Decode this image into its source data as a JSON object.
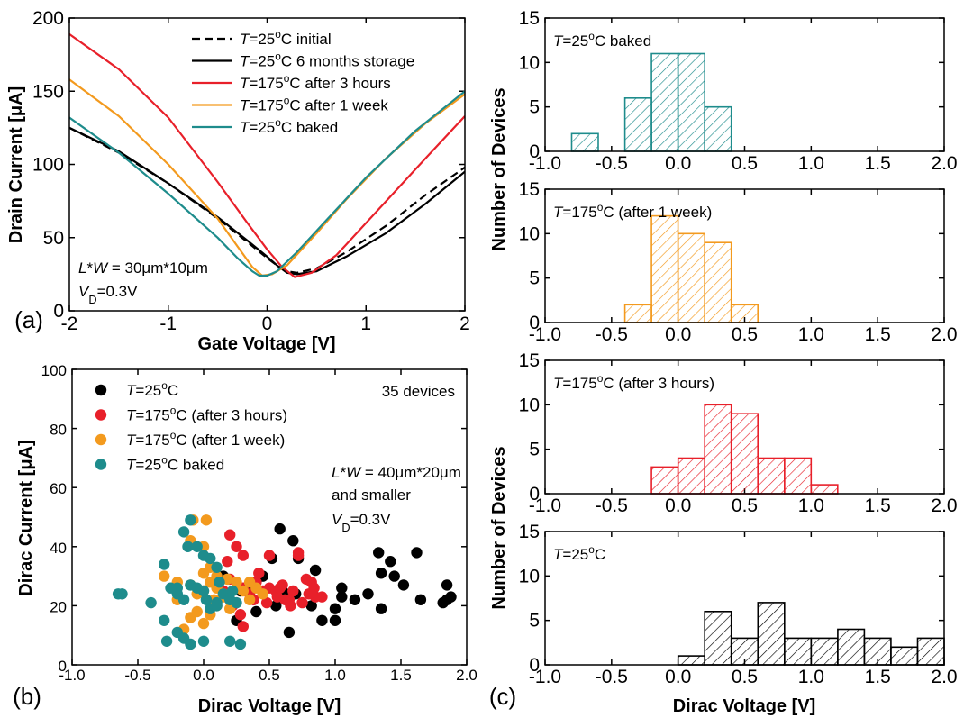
{
  "panel_labels": {
    "a": "(a)",
    "b": "(b)",
    "c": "(c)"
  },
  "chart_data": [
    {
      "id": "a",
      "type": "line",
      "xlabel": "Gate Voltage [V]",
      "ylabel": "Drain Current [μA]",
      "xlim": [
        -2,
        2
      ],
      "ylim": [
        0,
        200
      ],
      "xticks": [
        -2,
        -1,
        0,
        1,
        2
      ],
      "yticks": [
        0,
        50,
        100,
        150,
        200
      ],
      "annotation": [
        "L*W = 30μm*10μm",
        "VD=0.3V"
      ],
      "series": [
        {
          "name": "T=25°C initial",
          "color": "#000000",
          "dash": true,
          "x": [
            -2,
            -1.5,
            -1,
            -0.5,
            -0.2,
            0,
            0.1,
            0.2,
            0.3,
            0.5,
            0.8,
            1.2,
            1.6,
            2.0
          ],
          "y": [
            125,
            108,
            87,
            63,
            47,
            36,
            31,
            27,
            26,
            29,
            40,
            58,
            79,
            98
          ]
        },
        {
          "name": "T=25°C 6 months storage",
          "color": "#000000",
          "dash": false,
          "x": [
            -2,
            -1.5,
            -1,
            -0.5,
            -0.2,
            0,
            0.1,
            0.2,
            0.3,
            0.5,
            0.8,
            1.2,
            1.6,
            2.0
          ],
          "y": [
            125,
            109,
            87,
            64,
            48,
            37,
            31,
            26,
            25,
            27,
            37,
            53,
            73,
            95
          ]
        },
        {
          "name": "T=175°C after 3 hours",
          "color": "#e8202a",
          "dash": false,
          "x": [
            -2,
            -1.5,
            -1,
            -0.5,
            -0.2,
            0,
            0.15,
            0.28,
            0.45,
            0.7,
            1.0,
            1.3,
            1.6,
            2.0
          ],
          "y": [
            189,
            165,
            132,
            88,
            60,
            42,
            30,
            23,
            26,
            38,
            60,
            82,
            104,
            133
          ]
        },
        {
          "name": "T=175°C after 1 week",
          "color": "#f39a1e",
          "dash": false,
          "x": [
            -2,
            -1.5,
            -1,
            -0.5,
            -0.3,
            -0.15,
            -0.05,
            0.05,
            0.2,
            0.5,
            0.8,
            1.2,
            1.6,
            2.0
          ],
          "y": [
            158,
            133,
            100,
            63,
            44,
            30,
            24,
            25,
            31,
            53,
            76,
            104,
            128,
            148
          ]
        },
        {
          "name": "T=25°C baked",
          "color": "#1e8c8c",
          "dash": false,
          "x": [
            -2,
            -1.5,
            -1,
            -0.5,
            -0.3,
            -0.15,
            -0.08,
            0,
            0.1,
            0.3,
            0.6,
            1.0,
            1.5,
            2.0
          ],
          "y": [
            132,
            108,
            80,
            50,
            36,
            27,
            24,
            24,
            27,
            40,
            62,
            91,
            123,
            150
          ]
        }
      ]
    },
    {
      "id": "b",
      "type": "scatter",
      "xlabel": "Dirac Voltage [V]",
      "ylabel": "Dirac Current [μA]",
      "xlim": [
        -1.0,
        2.0
      ],
      "ylim": [
        0,
        100
      ],
      "xticks": [
        -1.0,
        -0.5,
        0.0,
        0.5,
        1.0,
        1.5,
        2.0
      ],
      "yticks": [
        0,
        20,
        40,
        60,
        80,
        100
      ],
      "annotation_count": "35 devices",
      "annotation": [
        "L*W = 40μm*20μm",
        "and smaller",
        "VD=0.3V"
      ],
      "series": [
        {
          "name": "T=25°C",
          "color": "#000000",
          "points": [
            [
              0.58,
              46
            ],
            [
              0.68,
              42
            ],
            [
              0.52,
              36
            ],
            [
              0.72,
              36
            ],
            [
              0.85,
              32
            ],
            [
              1.05,
              23
            ],
            [
              1.05,
              26
            ],
            [
              1.15,
              22
            ],
            [
              1.25,
              24
            ],
            [
              1.33,
              38
            ],
            [
              1.35,
              31
            ],
            [
              1.42,
              35
            ],
            [
              1.45,
              30
            ],
            [
              1.52,
              27
            ],
            [
              1.62,
              38
            ],
            [
              1.65,
              22
            ],
            [
              1.82,
              21
            ],
            [
              1.85,
              22
            ],
            [
              1.85,
              27
            ],
            [
              1.88,
              23
            ],
            [
              1.35,
              19
            ],
            [
              1.0,
              15
            ],
            [
              1.0,
              19
            ],
            [
              0.82,
              20
            ],
            [
              0.65,
              11
            ],
            [
              0.9,
              15
            ],
            [
              0.6,
              25
            ],
            [
              0.45,
              30
            ],
            [
              0.35,
              26
            ],
            [
              0.28,
              25
            ],
            [
              0.2,
              22
            ],
            [
              0.15,
              30
            ],
            [
              0.1,
              29
            ],
            [
              0.25,
              15
            ],
            [
              0.4,
              18
            ],
            [
              0.55,
              20
            ],
            [
              0.62,
              24
            ],
            [
              0.7,
              24
            ]
          ]
        },
        {
          "name": "T=175°C (after 3 hours)",
          "color": "#e8202a",
          "points": [
            [
              0.2,
              44
            ],
            [
              0.25,
              40
            ],
            [
              0.18,
              35
            ],
            [
              0.3,
              37
            ],
            [
              0.42,
              31
            ],
            [
              0.5,
              37
            ],
            [
              0.72,
              37
            ],
            [
              0.78,
              29
            ],
            [
              0.85,
              23
            ],
            [
              0.9,
              23
            ],
            [
              0.82,
              28
            ],
            [
              0.72,
              38
            ],
            [
              0.6,
              27
            ],
            [
              0.55,
              25
            ],
            [
              0.45,
              25
            ],
            [
              0.3,
              26
            ],
            [
              0.28,
              17
            ],
            [
              0.35,
              24
            ],
            [
              0.4,
              28
            ],
            [
              0.5,
              26
            ],
            [
              0.62,
              22
            ],
            [
              0.68,
              25
            ],
            [
              0.75,
              21
            ],
            [
              0.8,
              24
            ],
            [
              0.65,
              22
            ],
            [
              0.3,
              13
            ],
            [
              0.22,
              20
            ],
            [
              0.2,
              29
            ],
            [
              0.15,
              25
            ],
            [
              0.38,
              22
            ],
            [
              0.48,
              21
            ],
            [
              0.56,
              23
            ],
            [
              0.66,
              20
            ],
            [
              0.84,
              26
            ],
            [
              0.58,
              26
            ]
          ]
        },
        {
          "name": "T=175°C (after 1 week)",
          "color": "#f39a1e",
          "points": [
            [
              -0.08,
              49
            ],
            [
              0.02,
              49
            ],
            [
              -0.1,
              42
            ],
            [
              0.0,
              40
            ],
            [
              0.05,
              33
            ],
            [
              0.1,
              30
            ],
            [
              -0.2,
              28
            ],
            [
              -0.1,
              27
            ],
            [
              0.0,
              25
            ],
            [
              0.05,
              28
            ],
            [
              0.1,
              26
            ],
            [
              0.15,
              24
            ],
            [
              0.2,
              22
            ],
            [
              0.25,
              28
            ],
            [
              0.3,
              25
            ],
            [
              0.35,
              22
            ],
            [
              0.4,
              26
            ],
            [
              0.45,
              24
            ],
            [
              -0.05,
              18
            ],
            [
              -0.1,
              16
            ],
            [
              0.0,
              14
            ],
            [
              0.05,
              17
            ],
            [
              0.1,
              20
            ],
            [
              -0.15,
              12
            ],
            [
              0.2,
              19
            ],
            [
              -0.3,
              30
            ],
            [
              -0.2,
              22
            ],
            [
              0.15,
              23
            ],
            [
              0.35,
              28
            ],
            [
              0.25,
              26
            ],
            [
              -0.05,
              24
            ],
            [
              0.0,
              31
            ],
            [
              0.08,
              22
            ],
            [
              0.18,
              29
            ]
          ]
        },
        {
          "name": "T=25°C baked",
          "color": "#1e8c8c",
          "points": [
            [
              -0.65,
              24
            ],
            [
              -0.62,
              24
            ],
            [
              -0.4,
              21
            ],
            [
              -0.3,
              34
            ],
            [
              -0.2,
              26
            ],
            [
              -0.15,
              45
            ],
            [
              -0.12,
              40
            ],
            [
              -0.1,
              49
            ],
            [
              -0.05,
              40
            ],
            [
              0.0,
              37
            ],
            [
              0.05,
              36
            ],
            [
              0.1,
              33
            ],
            [
              -0.2,
              24
            ],
            [
              -0.15,
              22
            ],
            [
              -0.1,
              27
            ],
            [
              -0.05,
              26
            ],
            [
              0.0,
              25
            ],
            [
              0.05,
              19
            ],
            [
              0.1,
              21
            ],
            [
              0.15,
              24
            ],
            [
              0.2,
              22
            ],
            [
              0.25,
              21
            ],
            [
              -0.3,
              15
            ],
            [
              -0.2,
              11
            ],
            [
              -0.15,
              9
            ],
            [
              -0.1,
              7
            ],
            [
              0.0,
              8
            ],
            [
              0.1,
              20
            ],
            [
              0.2,
              8
            ],
            [
              0.28,
              7
            ],
            [
              -0.25,
              26
            ],
            [
              -0.28,
              8
            ],
            [
              0.02,
              22
            ],
            [
              0.12,
              28
            ],
            [
              0.22,
              25
            ]
          ]
        }
      ]
    },
    {
      "id": "c1",
      "type": "bar",
      "title": "T=25°C baked",
      "color": "#1e8c8c",
      "xlim": [
        -1.0,
        2.0
      ],
      "ylim": [
        0,
        15
      ],
      "bin_width": 0.2,
      "bins": [
        -0.8,
        -0.6,
        -0.4,
        -0.2,
        0.0,
        0.2
      ],
      "values": [
        2,
        0,
        6,
        11,
        11,
        5
      ],
      "xticks": [
        -1.0,
        -0.5,
        0.0,
        0.5,
        1.0,
        1.5,
        2.0
      ],
      "yticks": [
        0,
        5,
        10,
        15
      ]
    },
    {
      "id": "c2",
      "type": "bar",
      "title": "T=175°C (after 1 week)",
      "color": "#f39a1e",
      "xlim": [
        -1.0,
        2.0
      ],
      "ylim": [
        0,
        15
      ],
      "bin_width": 0.2,
      "bins": [
        -0.4,
        -0.2,
        0.0,
        0.2,
        0.4
      ],
      "values": [
        2,
        12,
        10,
        9,
        2
      ],
      "xticks": [
        -1.0,
        -0.5,
        0.0,
        0.5,
        1.0,
        1.5,
        2.0
      ],
      "yticks": [
        0,
        5,
        10,
        15
      ]
    },
    {
      "id": "c3",
      "type": "bar",
      "title": "T=175°C (after 3 hours)",
      "color": "#e8202a",
      "xlim": [
        -1.0,
        2.0
      ],
      "ylim": [
        0,
        15
      ],
      "bin_width": 0.2,
      "bins": [
        -0.2,
        0.0,
        0.2,
        0.4,
        0.6,
        0.8,
        1.0
      ],
      "values": [
        3,
        4,
        10,
        9,
        4,
        4,
        1
      ],
      "xticks": [
        -1.0,
        -0.5,
        0.0,
        0.5,
        1.0,
        1.5,
        2.0
      ],
      "yticks": [
        0,
        5,
        10,
        15
      ]
    },
    {
      "id": "c4",
      "type": "bar",
      "title": "T=25°C",
      "color": "#000000",
      "xlim": [
        -1.0,
        2.0
      ],
      "ylim": [
        0,
        15
      ],
      "bin_width": 0.2,
      "bins": [
        0.0,
        0.2,
        0.4,
        0.6,
        0.8,
        1.0,
        1.2,
        1.4,
        1.6,
        1.8
      ],
      "values": [
        1,
        6,
        3,
        7,
        3,
        3,
        4,
        3,
        2,
        3
      ],
      "xticks": [
        -1.0,
        -0.5,
        0.0,
        0.5,
        1.0,
        1.5,
        2.0
      ],
      "yticks": [
        0,
        5,
        10,
        15
      ],
      "xlabel": "Dirac Voltage [V]"
    }
  ],
  "shared_ylabel_c": "Number of Devices"
}
